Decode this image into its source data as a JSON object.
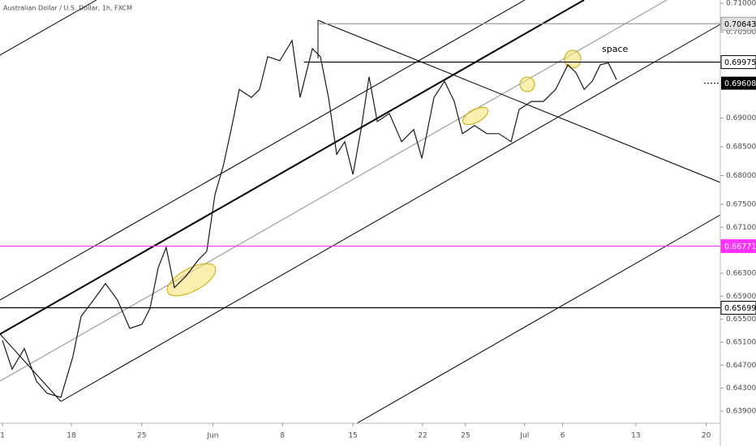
{
  "chart_data": {
    "type": "line",
    "title": "Australian Dollar / U.S. Dollar, 1h, FXCM",
    "annotation": "space",
    "color": "#1a1a1a",
    "x": [
      0,
      0.69,
      1.56,
      2.42,
      3.17,
      4.15,
      5.01,
      5.59,
      6.46,
      7.32,
      8.18,
      9.05,
      9.91,
      10.49,
      11.07,
      11.64,
      12.22,
      13.08,
      13.95,
      14.52,
      15.1,
      15.68,
      16.25,
      16.83,
      17.69,
      18.27,
      18.85,
      19.71,
      20.58,
      21.15,
      22.02,
      22.59,
      23.17,
      23.75,
      24.32,
      24.9,
      25.48,
      26.05,
      26.63,
      27.49,
      28.36,
      29.22,
      29.8,
      30.66,
      31.41,
      32.1,
      32.68,
      33.54,
      34.41,
      35.27,
      36.14,
      36.71,
      37.58,
      38.44,
      39.31,
      40.17,
      40.75,
      41.33,
      41.9,
      42.48,
      43.05,
      43.63
    ],
    "values": [
      0.6513,
      0.6463,
      0.6499,
      0.6442,
      0.6421,
      0.6414,
      0.6485,
      0.6555,
      0.6583,
      0.6612,
      0.6583,
      0.6534,
      0.6541,
      0.6569,
      0.664,
      0.6675,
      0.6605,
      0.6626,
      0.6654,
      0.6668,
      0.6767,
      0.6816,
      0.688,
      0.695,
      0.6936,
      0.695,
      0.7007,
      0.7,
      0.7035,
      0.6936,
      0.7021,
      0.7007,
      0.6936,
      0.6837,
      0.6859,
      0.6802,
      0.688,
      0.6972,
      0.6894,
      0.6908,
      0.6859,
      0.688,
      0.683,
      0.6936,
      0.6964,
      0.6929,
      0.6873,
      0.6887,
      0.6873,
      0.6873,
      0.6859,
      0.6915,
      0.6929,
      0.6929,
      0.695,
      0.6993,
      0.6979,
      0.695,
      0.6964,
      0.6993,
      0.6996,
      0.6967
    ],
    "xlim": [
      -0.17,
      51.0
    ],
    "xticks": [
      {
        "value": 0,
        "label": "1"
      },
      {
        "value": 4.9,
        "label": "18"
      },
      {
        "value": 9.9,
        "label": "25"
      },
      {
        "value": 14.95,
        "label": "Jun"
      },
      {
        "value": 19.9,
        "label": "8"
      },
      {
        "value": 24.9,
        "label": "15"
      },
      {
        "value": 29.85,
        "label": "22"
      },
      {
        "value": 32.9,
        "label": "25"
      },
      {
        "value": 37.1,
        "label": "Jul"
      },
      {
        "value": 39.8,
        "label": "6"
      },
      {
        "value": 45,
        "label": "13"
      },
      {
        "value": 50,
        "label": "20"
      }
    ],
    "ylim": [
      0.63688,
      0.71056
    ],
    "yticks": [
      {
        "value": 0.639,
        "label": "0.63900"
      },
      {
        "value": 0.643,
        "label": "0.64300"
      },
      {
        "value": 0.647,
        "label": "0.64700"
      },
      {
        "value": 0.651,
        "label": "0.65100"
      },
      {
        "value": 0.655,
        "label": "0.65500"
      },
      {
        "value": 0.659,
        "label": "0.65900"
      },
      {
        "value": 0.663,
        "label": "0.66300"
      },
      {
        "value": 0.671,
        "label": "0.67100"
      },
      {
        "value": 0.675,
        "label": "0.67500"
      },
      {
        "value": 0.68,
        "label": "0.68000"
      },
      {
        "value": 0.685,
        "label": "0.68500"
      },
      {
        "value": 0.69,
        "label": "0.69000"
      },
      {
        "value": 0.705,
        "label": "0.70500"
      },
      {
        "value": 0.71,
        "label": "0.71000"
      }
    ],
    "levels": [
      {
        "value": 0.70643,
        "color": "#9e9e9e",
        "text_color": "#000000",
        "badge": "#e0e0e0"
      },
      {
        "value": 0.69975,
        "color": "#000000",
        "text_color": "#000000",
        "badge": "#ffffff"
      },
      {
        "value": 0.66771,
        "color": "#ff33ff",
        "text_color": "#ffffff",
        "badge": "#ff33ff"
      },
      {
        "value": 0.65699,
        "color": "#000000",
        "text_color": "#000000",
        "badge": "#ffffff"
      }
    ],
    "last_price": {
      "value": 0.69608,
      "color": "#000000",
      "text_color": "#ffffff"
    }
  }
}
